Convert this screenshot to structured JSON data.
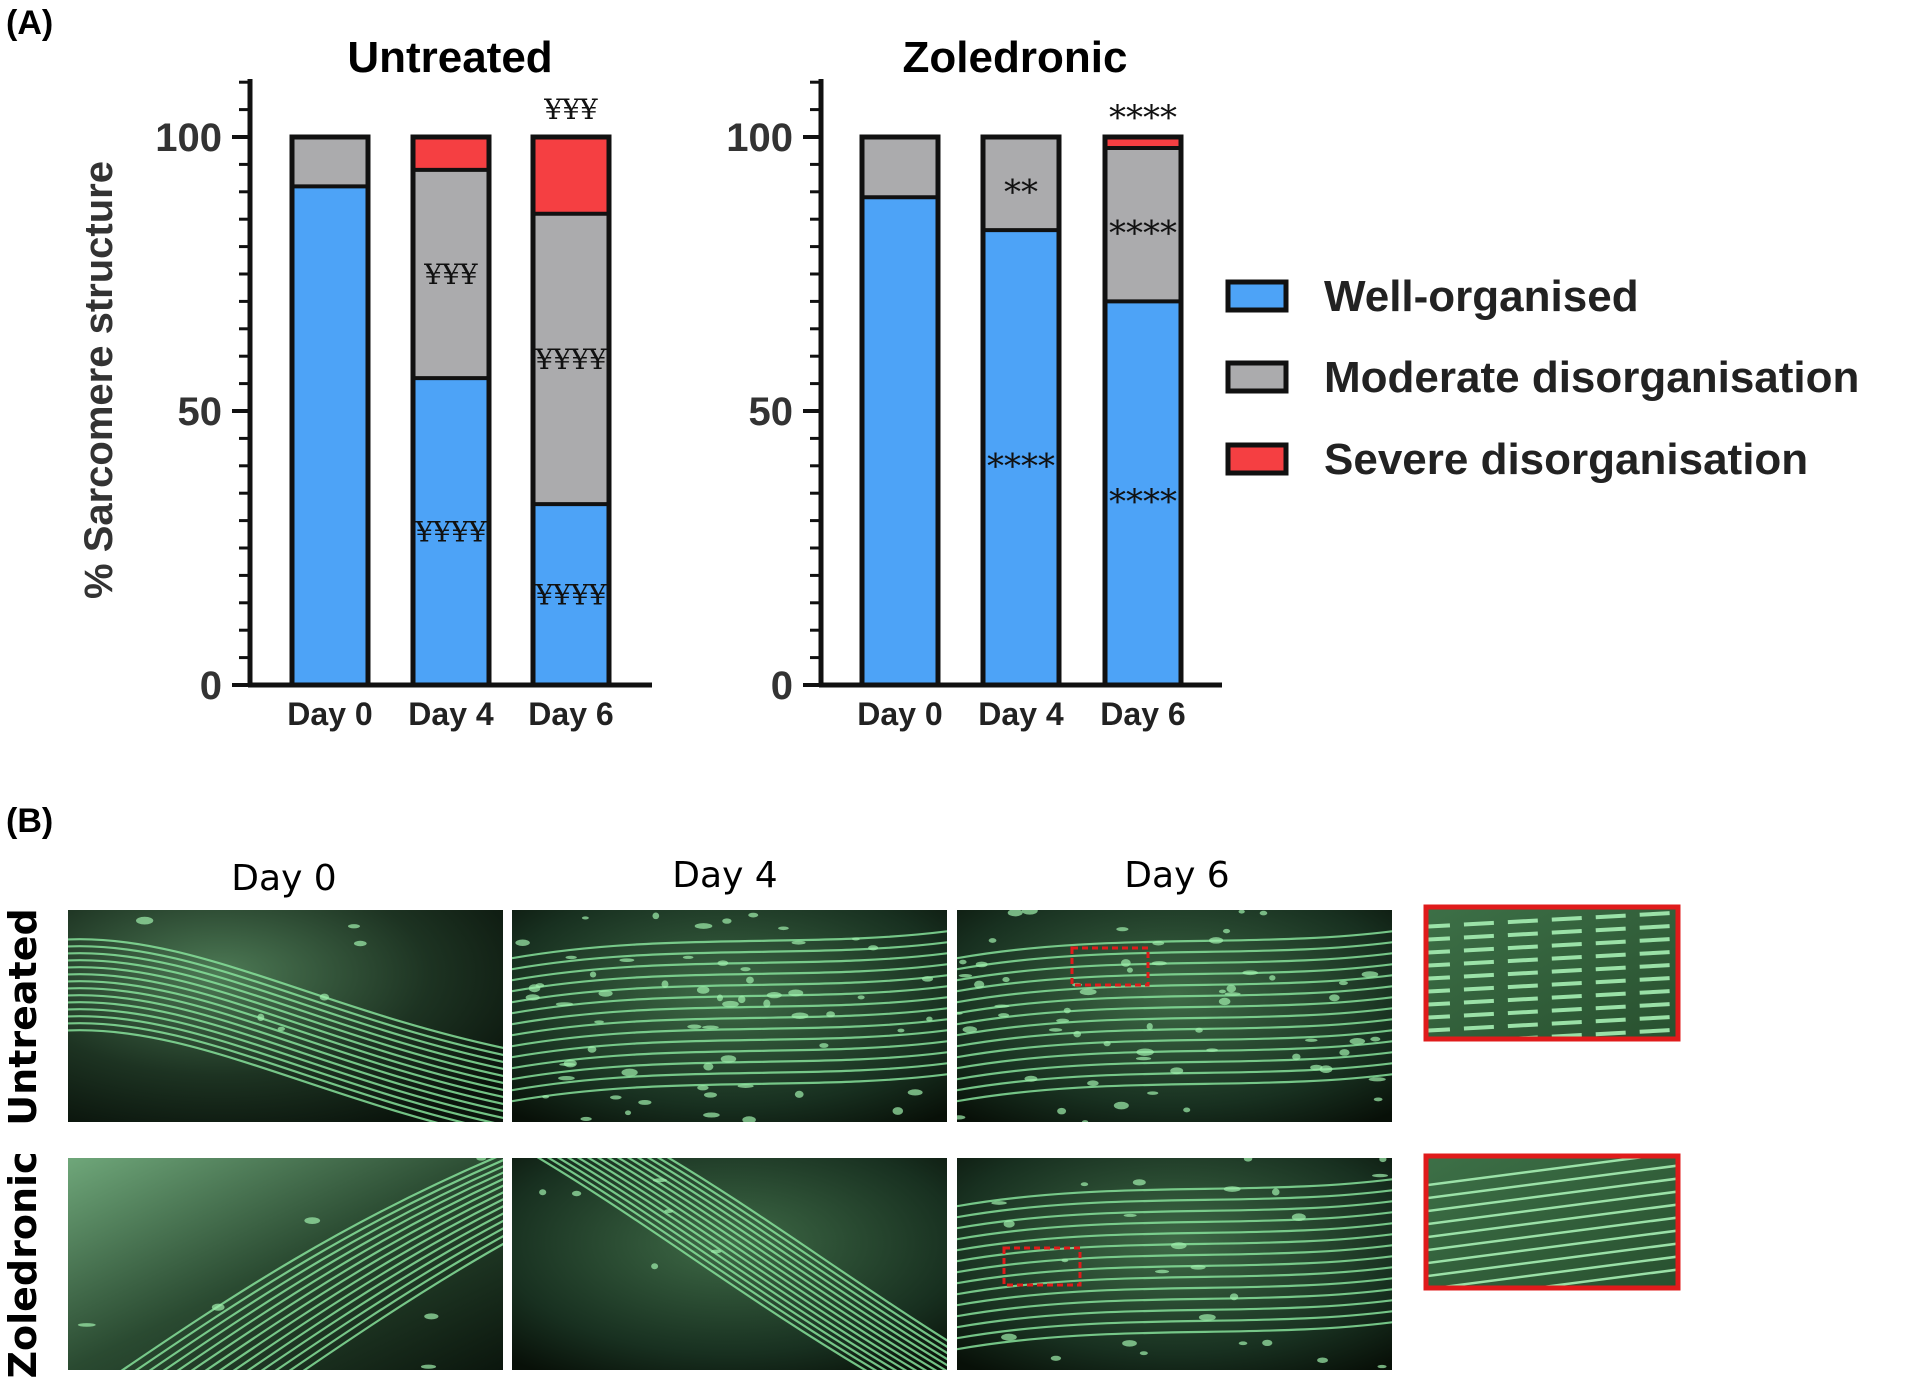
{
  "figure": {
    "panel_a_label": "(A)",
    "panel_b_label": "(B)",
    "colors": {
      "well": "#4da3f7",
      "moderate": "#ababad",
      "severe": "#f53f42",
      "microscopy_border": "#e01b1b"
    },
    "legend": [
      {
        "key": "well",
        "label": "Well-organised"
      },
      {
        "key": "moderate",
        "label": "Moderate disorganisation"
      },
      {
        "key": "severe",
        "label": "Severe disorganisation"
      }
    ],
    "micrographs": {
      "day_labels": [
        "Day 0",
        "Day 4",
        "Day 6"
      ],
      "row_labels": [
        "Untreated",
        "Zoledronic"
      ],
      "icon": "sarcomere-fluorescence-image"
    }
  },
  "chart_data": [
    {
      "type": "bar",
      "stacked": true,
      "title": "Untreated",
      "ylabel": "% Sarcomere structure",
      "ylim": [
        0,
        100
      ],
      "yticks": [
        0,
        50,
        100
      ],
      "categories": [
        "Day 0",
        "Day 4",
        "Day 6"
      ],
      "series": [
        {
          "name": "Well-organised",
          "values": [
            91,
            56,
            33
          ]
        },
        {
          "name": "Moderate disorganisation",
          "values": [
            9,
            38,
            53
          ]
        },
        {
          "name": "Severe disorganisation",
          "values": [
            0,
            6,
            14
          ]
        }
      ],
      "annotations": [
        {
          "category": "Day 4",
          "series": "Well-organised",
          "text": "¥¥¥¥"
        },
        {
          "category": "Day 4",
          "series": "Moderate disorganisation",
          "text": "¥¥¥"
        },
        {
          "category": "Day 6",
          "series": "Well-organised",
          "text": "¥¥¥¥"
        },
        {
          "category": "Day 6",
          "series": "Moderate disorganisation",
          "text": "¥¥¥¥"
        },
        {
          "category": "Day 6",
          "series": "top",
          "text": "¥¥¥"
        }
      ]
    },
    {
      "type": "bar",
      "stacked": true,
      "title": "Zoledronic",
      "ylabel": "",
      "ylim": [
        0,
        100
      ],
      "yticks": [
        0,
        50,
        100
      ],
      "categories": [
        "Day 0",
        "Day 4",
        "Day 6"
      ],
      "series": [
        {
          "name": "Well-organised",
          "values": [
            89,
            83,
            70
          ]
        },
        {
          "name": "Moderate disorganisation",
          "values": [
            11,
            17,
            28
          ]
        },
        {
          "name": "Severe disorganisation",
          "values": [
            0,
            0,
            2
          ]
        }
      ],
      "annotations": [
        {
          "category": "Day 4",
          "series": "Well-organised",
          "text": "****"
        },
        {
          "category": "Day 4",
          "series": "Moderate disorganisation",
          "text": "**"
        },
        {
          "category": "Day 6",
          "series": "Well-organised",
          "text": "****"
        },
        {
          "category": "Day 6",
          "series": "Moderate disorganisation",
          "text": "****"
        },
        {
          "category": "Day 6",
          "series": "top",
          "text": "****"
        }
      ]
    }
  ]
}
